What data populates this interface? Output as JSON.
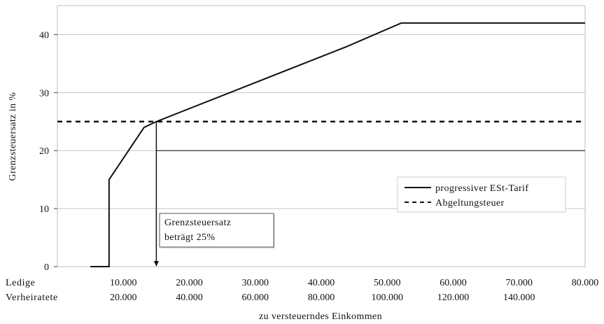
{
  "chart_data": {
    "type": "line",
    "xlabel": "zu versteuerndes Einkommen",
    "ylabel": "Grenzsteuersatz in %",
    "xlim": [
      0,
      80000
    ],
    "ylim": [
      0,
      45
    ],
    "yticks": [
      0,
      10,
      20,
      30,
      40
    ],
    "row_labels": [
      "Ledige",
      "Verheiratete"
    ],
    "xticks_ledige": [
      "10.000",
      "20.000",
      "30.000",
      "40.000",
      "50.000",
      "60.000",
      "70.000",
      "80.000"
    ],
    "xticks_verheiratete": [
      "20.000",
      "40.000",
      "60.000",
      "80.000",
      "100.000",
      "120.000",
      "140.000"
    ],
    "grid": "horizontal",
    "legend_position": "right",
    "series": [
      {
        "name": "progressiver ESt-Tarif",
        "style": "solid",
        "points": [
          [
            5000,
            0
          ],
          [
            7834,
            0
          ],
          [
            7834,
            15
          ],
          [
            13139,
            24
          ],
          [
            15000,
            25
          ],
          [
            44000,
            38
          ],
          [
            52152,
            42
          ],
          [
            80000,
            42
          ]
        ]
      },
      {
        "name": "Abgeltungsteuer",
        "style": "dashed",
        "points": [
          [
            0,
            25
          ],
          [
            80000,
            25
          ]
        ]
      }
    ],
    "reference_line": {
      "y": 20,
      "x_from": 15000,
      "x_to": 80000
    },
    "annotation": {
      "lines": [
        "Grenzsteuersatz",
        "beträgt 25%"
      ],
      "x": 15000,
      "y": 25
    }
  }
}
